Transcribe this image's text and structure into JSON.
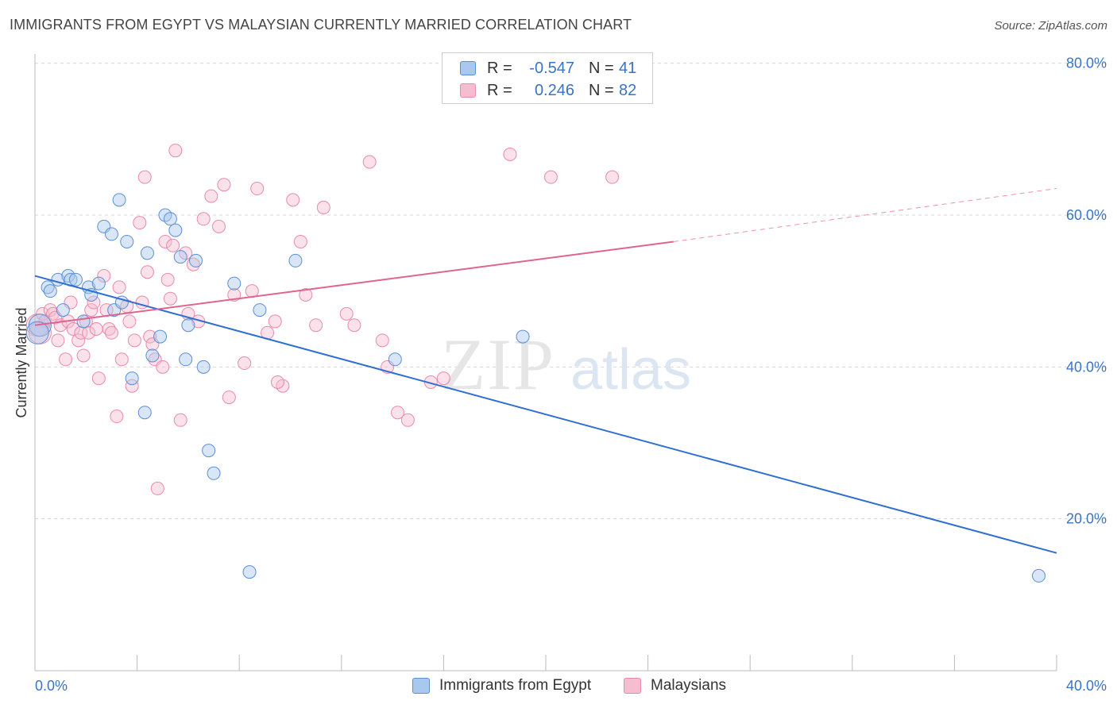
{
  "header": {
    "title": "IMMIGRANTS FROM EGYPT VS MALAYSIAN CURRENTLY MARRIED CORRELATION CHART",
    "source": "Source: ZipAtlas.com"
  },
  "watermark": {
    "zip": "ZIP",
    "atlas": "atlas"
  },
  "colors": {
    "blue_fill": "#a9c8ee",
    "blue_stroke": "#5b8fd6",
    "blue_line": "#2f6fcf",
    "pink_fill": "#f6bcd0",
    "pink_stroke": "#e98aaa",
    "pink_line": "#e0648f",
    "tick_text": "#3b73c4",
    "grid": "#d8d8d8"
  },
  "legend": {
    "rows": [
      {
        "r_label": "R =",
        "r_value": "-0.547",
        "n_label": "N =",
        "n_value": "41"
      },
      {
        "r_label": "R =",
        "r_value": "0.246",
        "n_label": "N =",
        "n_value": "82"
      }
    ]
  },
  "bottom_legend": {
    "items": [
      {
        "label": "Immigrants from Egypt"
      },
      {
        "label": "Malaysians"
      }
    ]
  },
  "chart_data": {
    "type": "scatter",
    "title": "IMMIGRANTS FROM EGYPT VS MALAYSIAN CURRENTLY MARRIED CORRELATION CHART",
    "xlabel": "",
    "ylabel": "Currently Married",
    "xlim": [
      0,
      40
    ],
    "ylim": [
      0,
      80
    ],
    "x_tick_labels": [
      "0.0%",
      "40.0%"
    ],
    "y_ticks": [
      20,
      40,
      60,
      80
    ],
    "y_tick_labels": [
      "20.0%",
      "40.0%",
      "60.0%",
      "80.0%"
    ],
    "grid": true,
    "legend_position": "top-center",
    "series": [
      {
        "name": "Immigrants from Egypt",
        "R": -0.547,
        "N": 41,
        "trend": {
          "x": [
            0,
            40
          ],
          "y": [
            52.0,
            15.5
          ]
        },
        "points": [
          [
            0.2,
            45.5
          ],
          [
            0.5,
            50.5
          ],
          [
            0.6,
            50.0
          ],
          [
            0.9,
            51.5
          ],
          [
            1.1,
            47.5
          ],
          [
            1.3,
            52.0
          ],
          [
            1.4,
            51.5
          ],
          [
            1.6,
            51.5
          ],
          [
            1.9,
            46.0
          ],
          [
            2.1,
            50.5
          ],
          [
            2.2,
            49.5
          ],
          [
            2.5,
            51.0
          ],
          [
            2.7,
            58.5
          ],
          [
            3.0,
            57.5
          ],
          [
            3.1,
            47.5
          ],
          [
            3.3,
            62.0
          ],
          [
            3.4,
            48.5
          ],
          [
            3.6,
            56.5
          ],
          [
            3.8,
            38.5
          ],
          [
            4.3,
            34.0
          ],
          [
            4.4,
            55.0
          ],
          [
            4.6,
            41.5
          ],
          [
            4.9,
            44.0
          ],
          [
            5.1,
            60.0
          ],
          [
            5.3,
            59.5
          ],
          [
            5.5,
            58.0
          ],
          [
            5.7,
            54.5
          ],
          [
            5.9,
            41.0
          ],
          [
            6.0,
            45.5
          ],
          [
            6.3,
            54.0
          ],
          [
            6.6,
            40.0
          ],
          [
            6.8,
            29.0
          ],
          [
            7.0,
            26.0
          ],
          [
            7.8,
            51.0
          ],
          [
            8.4,
            13.0
          ],
          [
            8.8,
            47.5
          ],
          [
            10.2,
            54.0
          ],
          [
            14.1,
            41.0
          ],
          [
            19.1,
            44.0
          ],
          [
            39.3,
            12.5
          ],
          [
            0.1,
            44.5
          ]
        ]
      },
      {
        "name": "Malaysians",
        "R": 0.246,
        "N": 82,
        "trend": {
          "x": [
            0,
            25
          ],
          "y": [
            45.5,
            56.5
          ],
          "dashed_to": [
            40,
            63.5
          ]
        },
        "points": [
          [
            0.1,
            45.5
          ],
          [
            0.3,
            47.0
          ],
          [
            0.4,
            46.0
          ],
          [
            0.6,
            47.5
          ],
          [
            0.7,
            47.0
          ],
          [
            0.8,
            46.5
          ],
          [
            0.9,
            43.5
          ],
          [
            1.0,
            45.5
          ],
          [
            1.2,
            41.0
          ],
          [
            1.3,
            46.0
          ],
          [
            1.4,
            48.5
          ],
          [
            1.5,
            45.0
          ],
          [
            1.7,
            43.5
          ],
          [
            1.8,
            44.5
          ],
          [
            1.9,
            41.5
          ],
          [
            2.0,
            46.0
          ],
          [
            2.1,
            44.5
          ],
          [
            2.2,
            47.5
          ],
          [
            2.3,
            48.5
          ],
          [
            2.4,
            45.0
          ],
          [
            2.5,
            38.5
          ],
          [
            2.7,
            52.0
          ],
          [
            2.8,
            47.5
          ],
          [
            2.9,
            45.0
          ],
          [
            3.0,
            44.5
          ],
          [
            3.2,
            33.5
          ],
          [
            3.3,
            50.5
          ],
          [
            3.4,
            41.0
          ],
          [
            3.6,
            48.0
          ],
          [
            3.7,
            46.0
          ],
          [
            3.8,
            37.5
          ],
          [
            3.9,
            43.5
          ],
          [
            4.1,
            59.0
          ],
          [
            4.2,
            48.5
          ],
          [
            4.3,
            65.0
          ],
          [
            4.4,
            52.5
          ],
          [
            4.5,
            44.0
          ],
          [
            4.6,
            43.0
          ],
          [
            4.7,
            41.0
          ],
          [
            4.8,
            24.0
          ],
          [
            5.0,
            40.0
          ],
          [
            5.1,
            56.5
          ],
          [
            5.2,
            51.5
          ],
          [
            5.3,
            49.0
          ],
          [
            5.4,
            56.0
          ],
          [
            5.5,
            68.5
          ],
          [
            5.7,
            33.0
          ],
          [
            5.9,
            55.0
          ],
          [
            6.0,
            47.0
          ],
          [
            6.2,
            53.5
          ],
          [
            6.4,
            46.0
          ],
          [
            6.6,
            59.5
          ],
          [
            6.9,
            62.5
          ],
          [
            7.2,
            58.5
          ],
          [
            7.4,
            64.0
          ],
          [
            7.6,
            36.0
          ],
          [
            7.8,
            49.5
          ],
          [
            8.2,
            40.5
          ],
          [
            8.5,
            50.0
          ],
          [
            8.7,
            63.5
          ],
          [
            9.1,
            44.5
          ],
          [
            9.4,
            46.0
          ],
          [
            9.7,
            37.5
          ],
          [
            10.1,
            62.0
          ],
          [
            10.4,
            56.5
          ],
          [
            10.6,
            49.5
          ],
          [
            11.0,
            45.5
          ],
          [
            11.3,
            61.0
          ],
          [
            12.2,
            47.0
          ],
          [
            13.1,
            67.0
          ],
          [
            13.6,
            43.5
          ],
          [
            13.8,
            40.0
          ],
          [
            14.2,
            34.0
          ],
          [
            14.6,
            33.0
          ],
          [
            15.5,
            38.0
          ],
          [
            16.0,
            38.5
          ],
          [
            18.6,
            68.0
          ],
          [
            20.2,
            65.0
          ],
          [
            22.6,
            65.0
          ],
          [
            12.5,
            45.5
          ],
          [
            9.5,
            38.0
          ],
          [
            0.2,
            44.5
          ]
        ]
      }
    ]
  }
}
